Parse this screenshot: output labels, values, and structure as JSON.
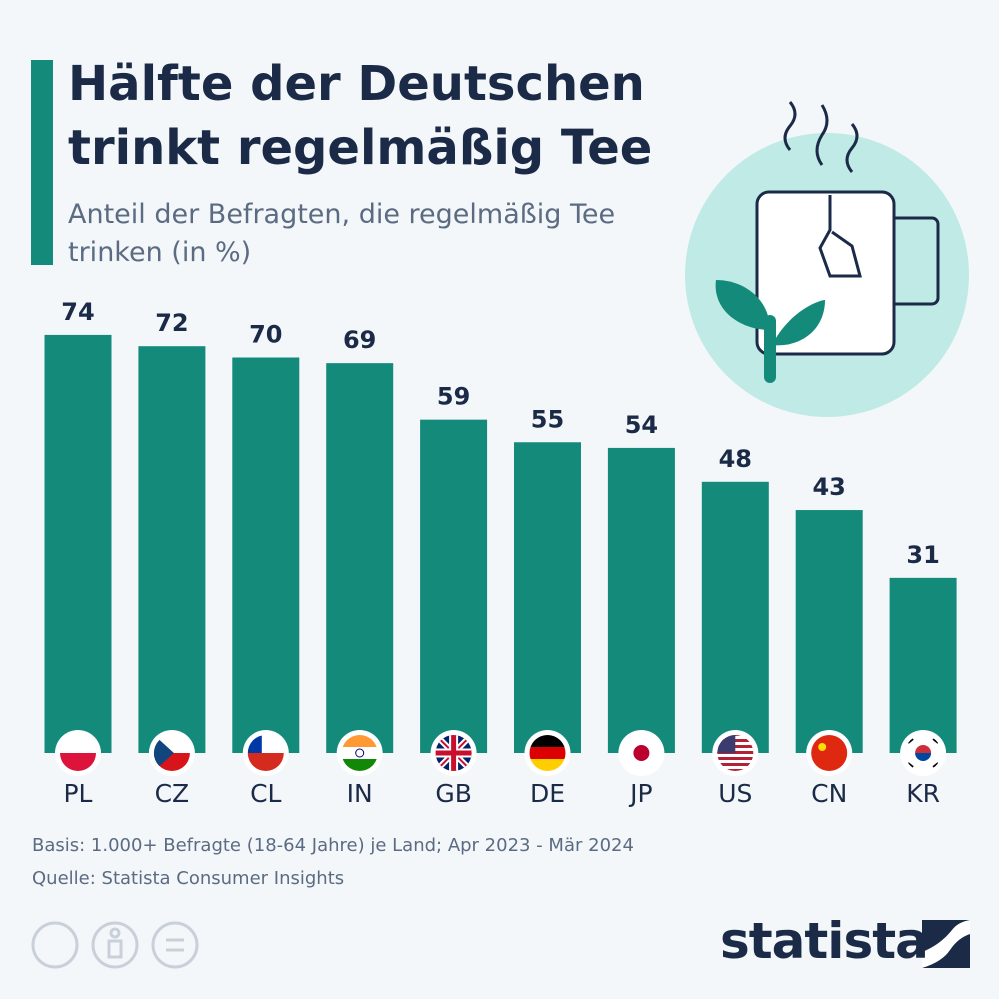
{
  "chart_data": {
    "type": "bar",
    "title": "Hälfte der Deutschen trinkt regelmäßig Tee",
    "subtitle": "Anteil der Befragten, die regelmäßig Tee trinken (in %)",
    "categories": [
      "PL",
      "CZ",
      "CL",
      "IN",
      "GB",
      "DE",
      "JP",
      "US",
      "CN",
      "KR"
    ],
    "values": [
      74,
      72,
      70,
      69,
      59,
      55,
      54,
      48,
      43,
      31
    ],
    "color": "#148a7b",
    "notes": [
      "Basis: 1.000+ Befragte (18-64 Jahre) je Land; Apr 2023 - Mär 2024",
      "Quelle: Statista Consumer Insights"
    ],
    "brand": "statista"
  }
}
